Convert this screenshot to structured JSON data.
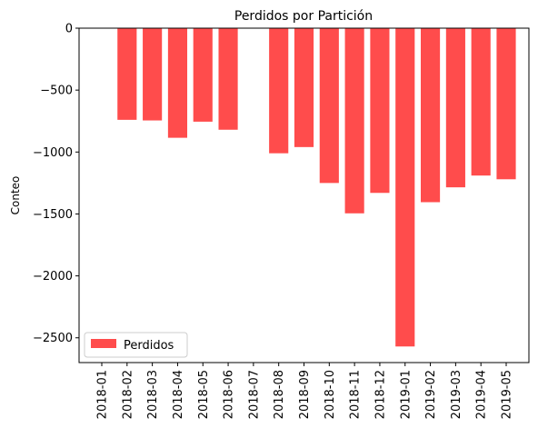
{
  "chart_data": {
    "type": "bar",
    "title": "Perdidos por Partición",
    "xlabel": "",
    "ylabel": "Conteo",
    "categories": [
      "2018-01",
      "2018-02",
      "2018-03",
      "2018-04",
      "2018-05",
      "2018-06",
      "2018-07",
      "2018-08",
      "2018-09",
      "2018-10",
      "2018-11",
      "2018-12",
      "2019-01",
      "2019-02",
      "2019-03",
      "2019-04",
      "2019-05"
    ],
    "series": [
      {
        "name": "Perdidos",
        "color": "#ff4c4c",
        "values": [
          0,
          -740,
          -745,
          -885,
          -755,
          -820,
          0,
          -1010,
          -960,
          -1250,
          -1495,
          -1330,
          -2570,
          -1405,
          -1285,
          -1190,
          -1220
        ]
      }
    ],
    "ylim": [
      -2700,
      0
    ],
    "yticks": [
      0,
      -500,
      -1000,
      -1500,
      -2000,
      -2500
    ],
    "ytick_labels": [
      "0",
      "−500",
      "−1000",
      "−1500",
      "−2000",
      "−2500"
    ],
    "grid": false,
    "legend_position": "lower-left"
  }
}
